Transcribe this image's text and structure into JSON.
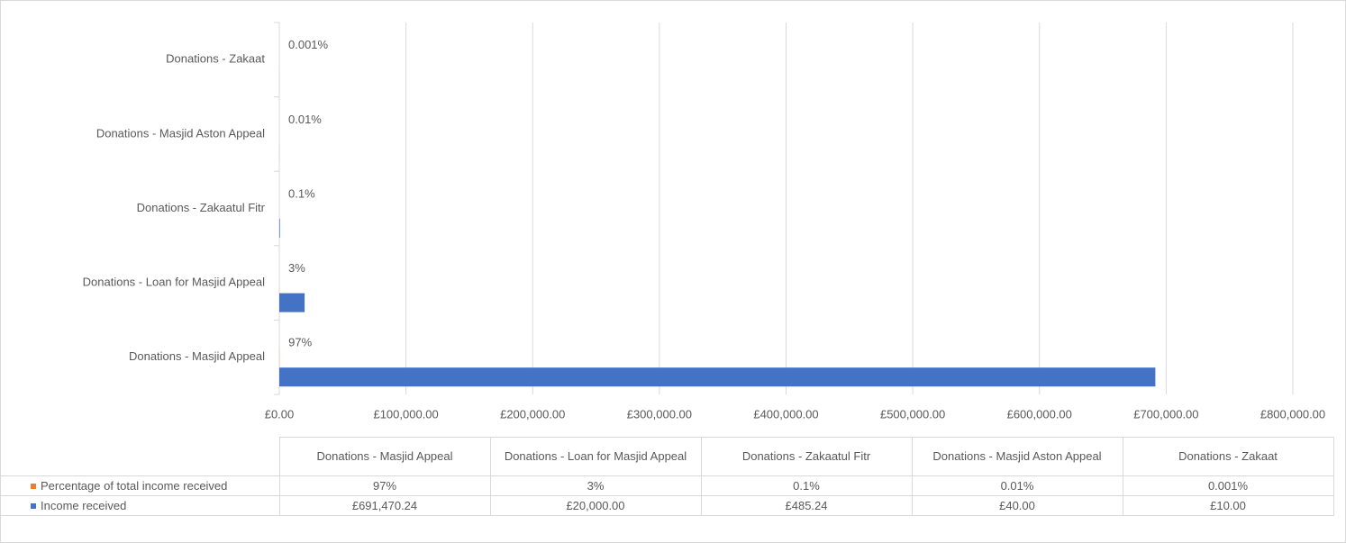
{
  "chart_data": {
    "type": "bar",
    "orientation": "horizontal",
    "categories": [
      "Donations - Masjid Appeal",
      "Donations - Loan for Masjid Appeal",
      "Donations - Zakaatul Fitr",
      "Donations - Masjid Aston Appeal",
      "Donations - Zakaat"
    ],
    "series": [
      {
        "name": "Percentage of total income received",
        "color": "#ed7d31",
        "values": [
          97,
          3,
          0.1,
          0.01,
          0.001
        ],
        "value_labels": [
          "97%",
          "3%",
          "0.1%",
          "0.01%",
          "0.001%"
        ]
      },
      {
        "name": "Income received",
        "color": "#4472c4",
        "values": [
          691470.24,
          20000,
          485.24,
          40,
          10
        ],
        "value_labels": [
          "£691,470.24",
          "£20,000.00",
          "£485.24",
          "£40.00",
          "£10.00"
        ]
      }
    ],
    "xlim": [
      0,
      800000
    ],
    "xticks": [
      {
        "value": 0,
        "label": "£0.00"
      },
      {
        "value": 100000,
        "label": "£100,000.00"
      },
      {
        "value": 200000,
        "label": "£200,000.00"
      },
      {
        "value": 300000,
        "label": "£300,000.00"
      },
      {
        "value": 400000,
        "label": "£400,000.00"
      },
      {
        "value": 500000,
        "label": "£500,000.00"
      },
      {
        "value": 600000,
        "label": "£600,000.00"
      },
      {
        "value": 700000,
        "label": "£700,000.00"
      },
      {
        "value": 800000,
        "label": "£800,000.00"
      }
    ],
    "grid": true,
    "data_table": true
  }
}
